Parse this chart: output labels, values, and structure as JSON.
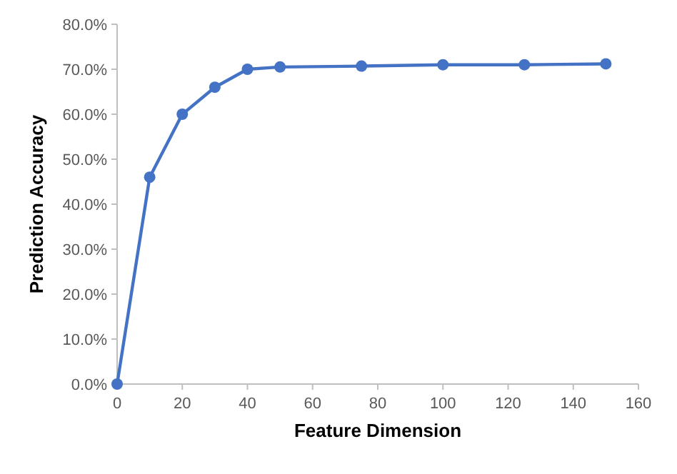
{
  "chart_data": {
    "type": "line",
    "xlabel": "Feature Dimension",
    "ylabel": "Prediction Accuracy",
    "x": [
      0,
      10,
      20,
      30,
      40,
      50,
      75,
      100,
      125,
      150
    ],
    "series": [
      {
        "color": "#4472c4",
        "values": [
          0,
          46,
          60,
          66,
          70,
          70.5,
          70.7,
          71,
          71,
          71.2
        ]
      }
    ],
    "xlim": [
      0,
      160
    ],
    "xticks": [
      0,
      20,
      40,
      60,
      80,
      100,
      120,
      140,
      160
    ],
    "ylim": [
      0,
      80
    ],
    "yticks": [
      {
        "value": 0,
        "label": "0.0%"
      },
      {
        "value": 10,
        "label": "10.0%"
      },
      {
        "value": 20,
        "label": "20.0%"
      },
      {
        "value": 30,
        "label": "30.0%"
      },
      {
        "value": 40,
        "label": "40.0%"
      },
      {
        "value": 50,
        "label": "50.0%"
      },
      {
        "value": 60,
        "label": "60.0%"
      },
      {
        "value": 70,
        "label": "70.0%"
      },
      {
        "value": 80,
        "label": "80.0%"
      }
    ],
    "grid": false,
    "marker": "circle",
    "line_style": "solid"
  }
}
